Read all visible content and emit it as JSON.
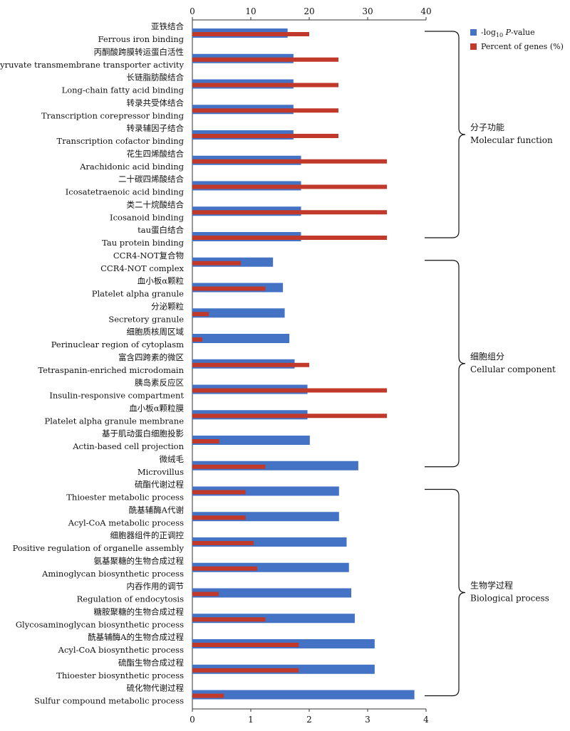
{
  "chart_data": {
    "type": "bar",
    "orientation": "horizontal",
    "top_axis": {
      "min": 0,
      "max": 40,
      "ticks": [
        "0",
        "10",
        "20",
        "30",
        "40"
      ]
    },
    "bottom_axis": {
      "min": 0,
      "max": 4,
      "ticks": [
        "0",
        "1",
        "2",
        "3",
        "4"
      ]
    },
    "legend": {
      "position": "top-right",
      "items": [
        {
          "prefix": "-log",
          "sub": "10",
          "italic": "P",
          "suffix": "-value",
          "color": "#4472c4"
        },
        {
          "prefix": "Percent of genes (%)",
          "sub": "",
          "italic": "",
          "suffix": "",
          "color": "#c0392b"
        }
      ]
    },
    "groups": [
      {
        "zh": "分子功能",
        "en": "Molecular function",
        "first": 0,
        "last": 8
      },
      {
        "zh": "细胞组分",
        "en": "Cellular component",
        "first": 9,
        "last": 17
      },
      {
        "zh": "生物学过程",
        "en": "Biological process",
        "first": 18,
        "last": 26
      }
    ],
    "categories": [
      {
        "zh": "亚铁结合",
        "en": "Ferrous iron binding"
      },
      {
        "zh": "丙酮酸跨膜转运蛋白活性",
        "en": "Pyruvate transmembrane transporter activity"
      },
      {
        "zh": "长链脂肪酸结合",
        "en": "Long-chain fatty acid binding"
      },
      {
        "zh": "转录共受体结合",
        "en": "Transcription corepressor binding"
      },
      {
        "zh": "转录辅因子结合",
        "en": "Transcription cofactor binding"
      },
      {
        "zh": "花生四烯酸结合",
        "en": "Arachidonic acid binding"
      },
      {
        "zh": "二十碳四烯酸结合",
        "en": "Icosatetraenoic acid binding"
      },
      {
        "zh": "类二十烷酸结合",
        "en": "Icosanoid binding"
      },
      {
        "zh": "tau蛋白结合",
        "en": "Tau protein binding"
      },
      {
        "zh": "CCR4-NOT复合物",
        "en": "CCR4-NOT complex"
      },
      {
        "zh": "血小板α颗粒",
        "en": "Platelet alpha granule"
      },
      {
        "zh": "分泌颗粒",
        "en": "Secretory granule"
      },
      {
        "zh": "细胞质核周区域",
        "en": "Perinuclear region of cytoplasm"
      },
      {
        "zh": "富含四跨素的微区",
        "en": "Tetraspanin-enriched microdomain"
      },
      {
        "zh": "胰岛素反应区",
        "en": "Insulin-responsive compartment"
      },
      {
        "zh": "血小板α颗粒膜",
        "en": "Platelet alpha granule membrane"
      },
      {
        "zh": "基于肌动蛋白细胞投影",
        "en": "Actin-based cell projection"
      },
      {
        "zh": "微绒毛",
        "en": "Microvillus"
      },
      {
        "zh": "硫酯代谢过程",
        "en": "Thioester metabolic process"
      },
      {
        "zh": "酰基辅酶A代谢",
        "en": "Acyl-CoA metabolic process"
      },
      {
        "zh": "细胞器组件的正调控",
        "en": "Positive regulation of organelle assembly"
      },
      {
        "zh": "氨基聚糖的生物合成过程",
        "en": "Aminoglycan biosynthetic process"
      },
      {
        "zh": "内吞作用的调节",
        "en": "Regulation of endocytosis"
      },
      {
        "zh": "糖胺聚糖的生物合成过程",
        "en": "Glycosaminoglycan biosynthetic process"
      },
      {
        "zh": "酰基辅酶A的生物合成过程",
        "en": "Acyl-CoA biosynthetic process"
      },
      {
        "zh": "硫酯生物合成过程",
        "en": "Thioester biosynthetic process"
      },
      {
        "zh": "硫化物代谢过程",
        "en": "Sulfur compound metabolic process"
      }
    ],
    "series": [
      {
        "axis": "bottom",
        "color": "#4472c4",
        "values": [
          1.63,
          1.73,
          1.73,
          1.73,
          1.73,
          1.86,
          1.86,
          1.86,
          1.86,
          1.38,
          1.55,
          1.58,
          1.66,
          1.75,
          1.97,
          1.97,
          2.01,
          2.84,
          2.51,
          2.51,
          2.64,
          2.68,
          2.72,
          2.78,
          3.12,
          3.12,
          3.8
        ]
      },
      {
        "axis": "top",
        "color": "#c0392b",
        "values": [
          20.0,
          25.0,
          25.0,
          25.0,
          25.0,
          33.3,
          33.3,
          33.3,
          33.3,
          8.3,
          12.5,
          2.8,
          1.7,
          20.0,
          33.3,
          33.3,
          4.6,
          12.5,
          9.1,
          9.1,
          10.5,
          11.1,
          4.5,
          12.5,
          18.2,
          18.2,
          5.4
        ]
      }
    ]
  }
}
